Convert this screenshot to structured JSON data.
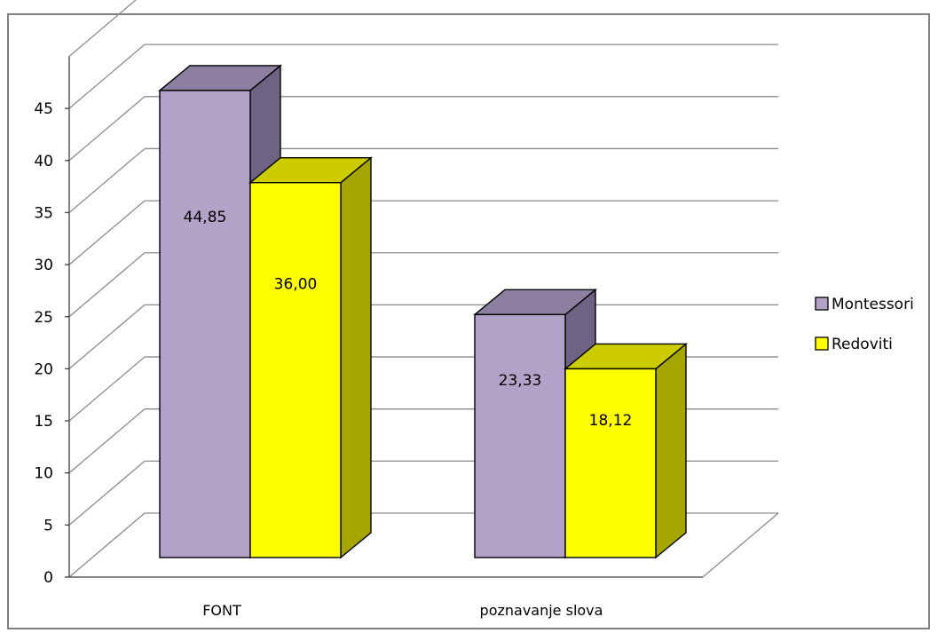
{
  "chart_data": {
    "type": "bar",
    "categories": [
      "FONT",
      "poznavanje slova"
    ],
    "series": [
      {
        "name": "Montessori",
        "values": [
          44.85,
          23.33
        ],
        "labels": [
          "44,85",
          "23,33"
        ],
        "color": "#b3a2c7",
        "top_color": "#8c7fa0",
        "side_color": "#6e6383"
      },
      {
        "name": "Redoviti",
        "values": [
          36.0,
          18.12
        ],
        "labels": [
          "36,00",
          "18,12"
        ],
        "color": "#ffff00",
        "top_color": "#cccc00",
        "side_color": "#a6a600"
      }
    ],
    "ylim": [
      0,
      45
    ],
    "yticks": [
      0,
      5,
      10,
      15,
      20,
      25,
      30,
      35,
      40,
      45
    ],
    "three_d": true,
    "grid": true,
    "legend_position": "right"
  }
}
